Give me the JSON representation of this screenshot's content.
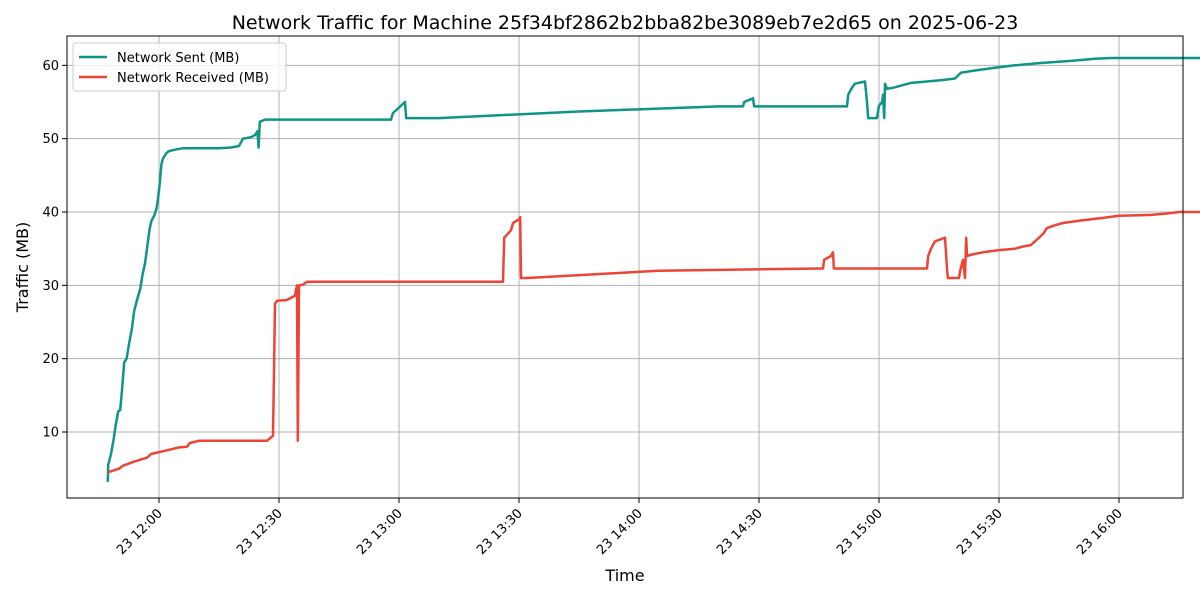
{
  "chart_data": {
    "type": "line",
    "title": "Network Traffic for Machine 25f34bf2862b2bba82be3089eb7e2d65 on 2025-06-23",
    "xlabel": "Time",
    "ylabel": "Traffic (MB)",
    "x_ticks": [
      "23 12:00",
      "23 12:30",
      "23 13:00",
      "23 13:30",
      "23 14:00",
      "23 14:30",
      "23 15:00",
      "23 15:30",
      "23 16:00"
    ],
    "x_tick_minutes": [
      720,
      750,
      780,
      810,
      840,
      870,
      900,
      930,
      960
    ],
    "xlim_minutes": [
      697,
      976
    ],
    "ylim": [
      1,
      64
    ],
    "y_ticks": [
      10,
      20,
      30,
      40,
      50,
      60
    ],
    "grid": true,
    "legend_position": "upper-left",
    "series": [
      {
        "name": "Network Sent (MB)",
        "color": "#0f9488",
        "points": [
          [
            707.2,
            3.2
          ],
          [
            707.3,
            5.5
          ],
          [
            708.0,
            7.0
          ],
          [
            708.6,
            8.8
          ],
          [
            709.2,
            11.0
          ],
          [
            709.8,
            12.8
          ],
          [
            710.3,
            13.0
          ],
          [
            710.8,
            16.0
          ],
          [
            711.3,
            19.5
          ],
          [
            711.9,
            20.0
          ],
          [
            712.5,
            22.0
          ],
          [
            713.2,
            24.0
          ],
          [
            713.8,
            26.5
          ],
          [
            714.5,
            28.0
          ],
          [
            715.3,
            29.5
          ],
          [
            715.9,
            31.5
          ],
          [
            716.5,
            33.0
          ],
          [
            717.0,
            35.0
          ],
          [
            717.6,
            37.5
          ],
          [
            718.1,
            38.8
          ],
          [
            718.8,
            39.5
          ],
          [
            719.4,
            40.5
          ],
          [
            719.8,
            42.0
          ],
          [
            720.2,
            44.0
          ],
          [
            720.6,
            46.5
          ],
          [
            721.0,
            47.3
          ],
          [
            721.8,
            48.0
          ],
          [
            722.5,
            48.3
          ],
          [
            724.0,
            48.5
          ],
          [
            726.0,
            48.7
          ],
          [
            735.0,
            48.7
          ],
          [
            738.0,
            48.8
          ],
          [
            740.0,
            49.0
          ],
          [
            741.0,
            50.0
          ],
          [
            743.0,
            50.2
          ],
          [
            744.0,
            50.5
          ],
          [
            744.6,
            51.0
          ],
          [
            744.9,
            48.8
          ],
          [
            745.2,
            52.3
          ],
          [
            746.5,
            52.6
          ],
          [
            760.0,
            52.6
          ],
          [
            778.0,
            52.6
          ],
          [
            778.5,
            53.5
          ],
          [
            780.5,
            54.5
          ],
          [
            781.5,
            55.0
          ],
          [
            781.8,
            52.8
          ],
          [
            790.0,
            52.8
          ],
          [
            825.0,
            53.7
          ],
          [
            860.0,
            54.4
          ],
          [
            866.0,
            54.4
          ],
          [
            866.3,
            55.0
          ],
          [
            868.5,
            55.5
          ],
          [
            868.8,
            54.4
          ],
          [
            892.0,
            54.4
          ],
          [
            892.3,
            56.0
          ],
          [
            893.3,
            57.0
          ],
          [
            894.0,
            57.5
          ],
          [
            896.5,
            57.8
          ],
          [
            897.0,
            55.0
          ],
          [
            897.3,
            52.8
          ],
          [
            899.5,
            52.8
          ],
          [
            900.0,
            54.5
          ],
          [
            900.8,
            55.0
          ],
          [
            901.0,
            56.0
          ],
          [
            901.3,
            52.8
          ],
          [
            901.5,
            57.5
          ],
          [
            902.0,
            56.8
          ],
          [
            904.0,
            57.0
          ],
          [
            906.0,
            57.3
          ],
          [
            908.0,
            57.6
          ],
          [
            912.0,
            57.8
          ],
          [
            916.0,
            58.0
          ],
          [
            919.0,
            58.2
          ],
          [
            920.5,
            59.0
          ],
          [
            924.0,
            59.3
          ],
          [
            928.0,
            59.6
          ],
          [
            934.0,
            60.0
          ],
          [
            940.0,
            60.3
          ],
          [
            948.0,
            60.6
          ],
          [
            954.0,
            60.9
          ],
          [
            958.0,
            61.0
          ],
          [
            980.0,
            61.0
          ],
          [
            1000.0,
            61.0
          ],
          [
            1020.0,
            61.0
          ],
          [
            1040.0,
            61.0
          ],
          [
            1066.0,
            61.0
          ]
        ]
      },
      {
        "name": "Network Received (MB)",
        "color": "#ee4435",
        "points": [
          [
            707.2,
            4.5
          ],
          [
            710.0,
            5.0
          ],
          [
            711.0,
            5.4
          ],
          [
            714.0,
            6.0
          ],
          [
            717.0,
            6.5
          ],
          [
            718.0,
            7.0
          ],
          [
            722.0,
            7.5
          ],
          [
            725.0,
            7.9
          ],
          [
            727.0,
            8.0
          ],
          [
            727.7,
            8.5
          ],
          [
            730.0,
            8.8
          ],
          [
            743.0,
            8.8
          ],
          [
            747.0,
            8.8
          ],
          [
            748.5,
            9.5
          ],
          [
            749.0,
            27.5
          ],
          [
            749.5,
            27.9
          ],
          [
            752.0,
            28.0
          ],
          [
            754.0,
            28.6
          ],
          [
            754.5,
            30.0
          ],
          [
            754.7,
            8.8
          ],
          [
            755.0,
            30.0
          ],
          [
            756.0,
            30.1
          ],
          [
            757.0,
            30.5
          ],
          [
            770.0,
            30.5
          ],
          [
            790.0,
            30.5
          ],
          [
            806.0,
            30.5
          ],
          [
            806.3,
            36.5
          ],
          [
            808.0,
            37.5
          ],
          [
            808.5,
            38.5
          ],
          [
            810.0,
            39.0
          ],
          [
            810.3,
            39.3
          ],
          [
            810.5,
            31.0
          ],
          [
            812.0,
            31.0
          ],
          [
            845.0,
            32.0
          ],
          [
            885.0,
            32.3
          ],
          [
            886.0,
            32.3
          ],
          [
            886.3,
            33.5
          ],
          [
            888.0,
            34.0
          ],
          [
            888.5,
            34.5
          ],
          [
            888.7,
            32.3
          ],
          [
            912.0,
            32.3
          ],
          [
            912.3,
            34.0
          ],
          [
            913.0,
            35.0
          ],
          [
            914.0,
            36.0
          ],
          [
            915.0,
            36.2
          ],
          [
            916.5,
            36.5
          ],
          [
            917.0,
            32.3
          ],
          [
            917.2,
            31.0
          ],
          [
            920.0,
            31.0
          ],
          [
            920.3,
            32.0
          ],
          [
            921.0,
            33.5
          ],
          [
            921.5,
            31.0
          ],
          [
            921.8,
            36.5
          ],
          [
            922.0,
            34.0
          ],
          [
            924.0,
            34.3
          ],
          [
            926.0,
            34.5
          ],
          [
            930.0,
            34.8
          ],
          [
            934.0,
            35.0
          ],
          [
            936.0,
            35.3
          ],
          [
            938.0,
            35.5
          ],
          [
            939.0,
            36.0
          ],
          [
            941.0,
            37.0
          ],
          [
            942.0,
            37.8
          ],
          [
            944.0,
            38.2
          ],
          [
            946.0,
            38.5
          ],
          [
            950.0,
            38.8
          ],
          [
            956.0,
            39.2
          ],
          [
            960.0,
            39.5
          ],
          [
            968.0,
            39.6
          ],
          [
            972.0,
            39.8
          ],
          [
            975.0,
            40.0
          ],
          [
            980.0,
            40.0
          ],
          [
            1000.0,
            40.0
          ],
          [
            1020.0,
            40.0
          ],
          [
            1040.0,
            40.0
          ],
          [
            1066.0,
            40.0
          ]
        ]
      }
    ]
  }
}
